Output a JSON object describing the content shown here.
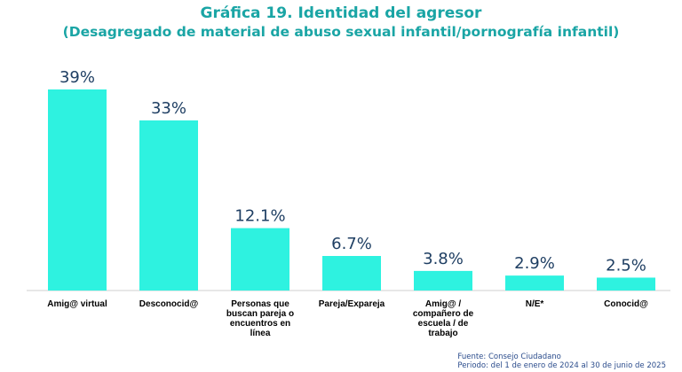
{
  "header": {
    "title": "Gráfica 19. Identidad del agresor",
    "subtitle": "(Desagregado de material de abuso sexual infantil/pornografía infantil)"
  },
  "chart_data": {
    "type": "bar",
    "categories": [
      [
        "Amig@ virtual"
      ],
      [
        "Desconocid@"
      ],
      [
        "Personas que",
        "buscan pareja o",
        "encuentros en",
        "línea"
      ],
      [
        "Pareja/Expareja"
      ],
      [
        "Amig@ /",
        "compañero de",
        "escuela / de",
        "trabajo"
      ],
      [
        "N/E*"
      ],
      [
        "Conocid@"
      ]
    ],
    "values": [
      39,
      33,
      12.1,
      6.7,
      3.8,
      2.9,
      2.5
    ],
    "data_labels": [
      "39%",
      "33%",
      "12.1%",
      "6.7%",
      "3.8%",
      "2.9%",
      "2.5%"
    ],
    "ylim": [
      0,
      39
    ],
    "bar_color": "#2ef2e0",
    "axis_color": "#cfcfcf",
    "grid": false
  },
  "footer": {
    "source": "Fuente: Consejo Ciudadano",
    "period": "Periodo:  del 1 de enero de 2024 al 30 de junio de 2025"
  },
  "colors": {
    "title": "#1aa5a5",
    "footer": "#2b4c8c"
  }
}
